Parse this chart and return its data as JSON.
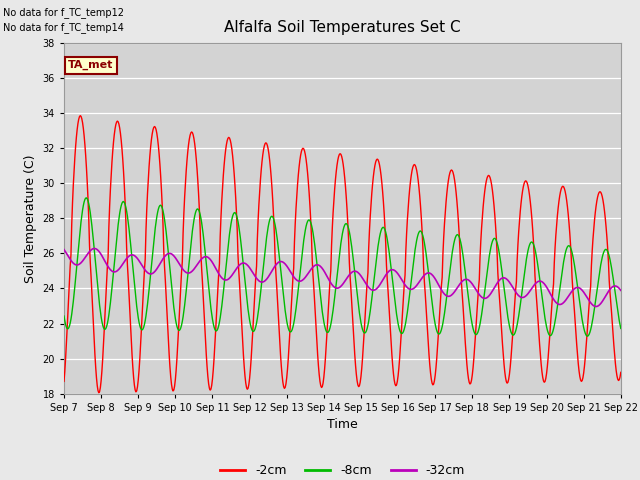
{
  "title": "Alfalfa Soil Temperatures Set C",
  "xlabel": "Time",
  "ylabel": "Soil Temperature (C)",
  "ylim": [
    18,
    38
  ],
  "yticks": [
    18,
    20,
    22,
    24,
    26,
    28,
    30,
    32,
    34,
    36,
    38
  ],
  "color_2cm": "#ff0000",
  "color_8cm": "#00bb00",
  "color_32cm": "#bb00bb",
  "fig_bg_color": "#e8e8e8",
  "plot_bg_color": "#d3d3d3",
  "note_lines": [
    "No data for f_TC_temp12",
    "No data for f_TC_temp14"
  ],
  "ta_met_label": "TA_met",
  "legend_entries": [
    "-2cm",
    "-8cm",
    "-32cm"
  ],
  "x_tick_labels": [
    "Sep 7",
    "Sep 8",
    "Sep 9",
    "Sep 10",
    "Sep 11",
    "Sep 12",
    "Sep 13",
    "Sep 14",
    "Sep 15",
    "Sep 16",
    "Sep 17",
    "Sep 18",
    "Sep 19",
    "Sep 20",
    "Sep 21",
    "Sep 22"
  ]
}
